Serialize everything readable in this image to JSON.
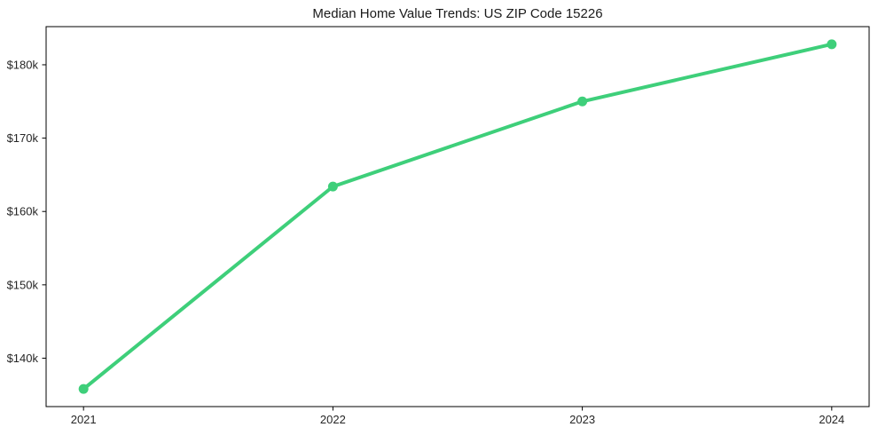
{
  "chart_data": {
    "type": "line",
    "title": "Median Home Value Trends: US ZIP Code 15226",
    "xlabel": "",
    "ylabel": "",
    "x": [
      2021,
      2022,
      2023,
      2024
    ],
    "values": [
      135800,
      163400,
      175000,
      182800
    ],
    "x_tick_labels": [
      "2021",
      "2022",
      "2023",
      "2024"
    ],
    "y_ticks": [
      140000,
      150000,
      160000,
      170000,
      180000
    ],
    "y_tick_labels": [
      "$140k",
      "$150k",
      "$160k",
      "$170k",
      "$180k"
    ],
    "xlim": [
      2020.85,
      2024.15
    ],
    "ylim": [
      133400,
      185200
    ],
    "grid": false,
    "legend": null,
    "line_color": "#3ecf7a",
    "marker_color": "#3ecf7a",
    "spine_color": "#000000",
    "background_color": "#ffffff",
    "line_width": 4,
    "marker_radius": 5.5
  }
}
